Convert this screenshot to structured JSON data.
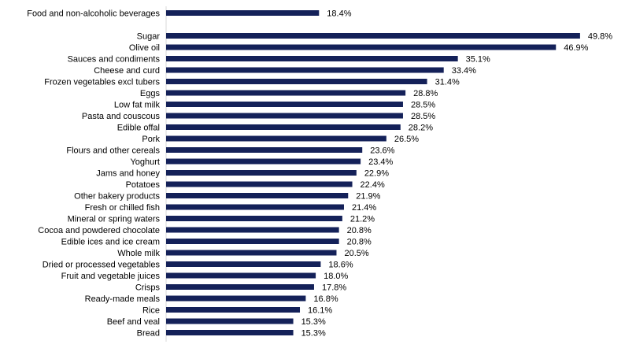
{
  "chart_data": {
    "type": "bar",
    "orientation": "horizontal",
    "categories": [
      "Food and non-alcoholic beverages",
      "Sugar",
      "Olive oil",
      "Sauces and condiments",
      "Cheese and curd",
      "Frozen vegetables excl tubers",
      "Eggs",
      "Low fat milk",
      "Pasta and couscous",
      "Edible offal",
      "Pork",
      "Flours and other cereals",
      "Yoghurt",
      "Jams and honey",
      "Potatoes",
      "Other bakery products",
      "Fresh or chilled fish",
      "Mineral or spring waters",
      "Cocoa and powdered chocolate",
      "Edible ices and ice cream",
      "Whole milk",
      "Dried or processed vegetables",
      "Fruit and vegetable juices",
      "Crisps",
      "Ready-made meals",
      "Rice",
      "Beef and veal",
      "Bread"
    ],
    "values": [
      18.4,
      49.8,
      46.9,
      35.1,
      33.4,
      31.4,
      28.8,
      28.5,
      28.5,
      28.2,
      26.5,
      23.6,
      23.4,
      22.9,
      22.4,
      21.9,
      21.4,
      21.2,
      20.8,
      20.8,
      20.5,
      18.6,
      18.0,
      17.8,
      16.8,
      16.1,
      15.3,
      15.3
    ],
    "value_labels": [
      "18.4%",
      "49.8%",
      "46.9%",
      "35.1%",
      "33.4%",
      "31.4%",
      "28.8%",
      "28.5%",
      "28.5%",
      "28.2%",
      "26.5%",
      "23.6%",
      "23.4%",
      "22.9%",
      "22.4%",
      "21.9%",
      "21.4%",
      "21.2%",
      "20.8%",
      "20.8%",
      "20.5%",
      "18.6%",
      "18.0%",
      "17.8%",
      "16.8%",
      "16.1%",
      "15.3%",
      "15.3%"
    ],
    "xlim": [
      0,
      50
    ],
    "grid": false,
    "bar_color": "#142159"
  }
}
